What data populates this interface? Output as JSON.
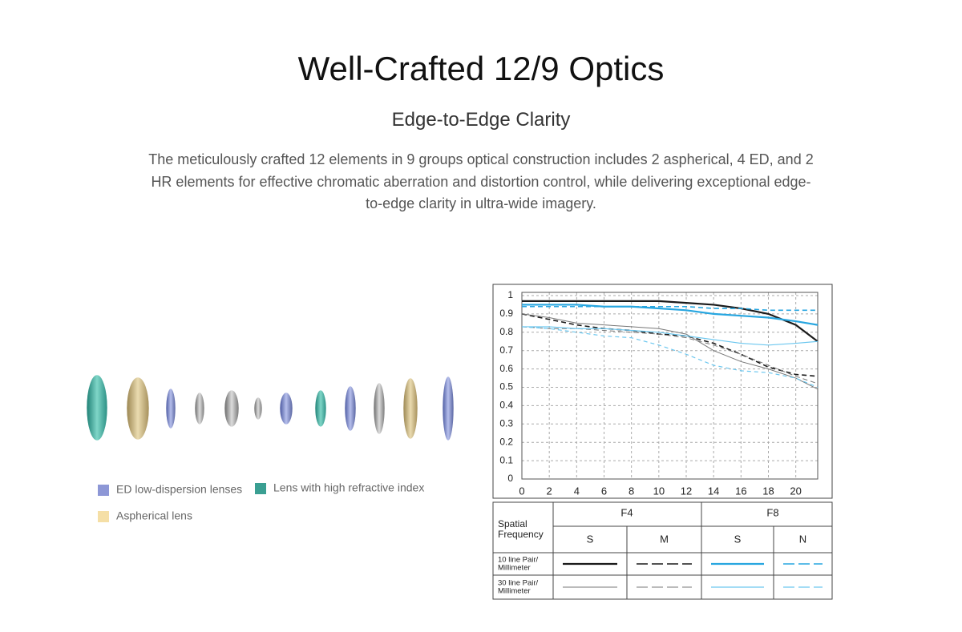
{
  "header": {
    "title": "Well-Crafted 12/9 Optics",
    "subtitle": "Edge-to-Edge Clarity",
    "body_lines": [
      "The meticulously crafted 12 elements in 9 groups optical construction includes 2 aspherical, 4 ED, and 2",
      "HR elements for effective chromatic aberration and distortion control, while delivering exceptional edge-",
      "to-edge clarity in ultra-wide imagery."
    ]
  },
  "lens_legend": [
    {
      "label": "ED low-dispersion lenses",
      "color": "#8d97d6"
    },
    {
      "label": "Lens with high refractive index",
      "color": "#3a9f92"
    },
    {
      "label": "Aspherical lens",
      "color": "#f5dfa6"
    }
  ],
  "chart_data": {
    "type": "line",
    "x": [
      0,
      2,
      4,
      6,
      8,
      10,
      12,
      14,
      16,
      18,
      20,
      21.6
    ],
    "xlim": [
      0,
      21.6
    ],
    "xticks": [
      0,
      2,
      4,
      6,
      8,
      10,
      12,
      14,
      16,
      18,
      20
    ],
    "ylim": [
      0,
      1
    ],
    "yticks": [
      0,
      0.1,
      0.2,
      0.3,
      0.4,
      0.5,
      0.6,
      0.7,
      0.8,
      0.9,
      1
    ],
    "grid": true,
    "series": [
      {
        "color": "#1a1a1a",
        "dash": "none",
        "width": 2.2,
        "values": [
          0.97,
          0.97,
          0.97,
          0.97,
          0.97,
          0.97,
          0.96,
          0.95,
          0.93,
          0.9,
          0.84,
          0.75
        ]
      },
      {
        "color": "#1a1a1a",
        "dash": "6 4",
        "width": 1.6,
        "values": [
          0.9,
          0.87,
          0.84,
          0.82,
          0.81,
          0.79,
          0.78,
          0.74,
          0.68,
          0.61,
          0.57,
          0.56
        ]
      },
      {
        "color": "#27a6e0",
        "dash": "none",
        "width": 2.2,
        "values": [
          0.95,
          0.95,
          0.95,
          0.94,
          0.94,
          0.93,
          0.92,
          0.9,
          0.89,
          0.88,
          0.86,
          0.84
        ]
      },
      {
        "color": "#27a6e0",
        "dash": "6 4",
        "width": 1.6,
        "values": [
          0.94,
          0.94,
          0.94,
          0.94,
          0.94,
          0.94,
          0.94,
          0.93,
          0.93,
          0.92,
          0.92,
          0.92
        ]
      },
      {
        "color": "#777777",
        "dash": "none",
        "width": 1,
        "values": [
          0.9,
          0.88,
          0.85,
          0.84,
          0.83,
          0.82,
          0.79,
          0.7,
          0.64,
          0.6,
          0.55,
          0.49
        ]
      },
      {
        "color": "#777777",
        "dash": "6 4",
        "width": 1,
        "values": [
          0.83,
          0.82,
          0.82,
          0.81,
          0.8,
          0.79,
          0.77,
          0.73,
          0.68,
          0.62,
          0.56,
          0.52
        ]
      },
      {
        "color": "#6cc7ef",
        "dash": "none",
        "width": 1.2,
        "values": [
          0.83,
          0.83,
          0.82,
          0.82,
          0.81,
          0.8,
          0.78,
          0.76,
          0.74,
          0.73,
          0.74,
          0.75
        ]
      },
      {
        "color": "#6cc7ef",
        "dash": "5 4",
        "width": 1.2,
        "values": [
          0.83,
          0.82,
          0.8,
          0.78,
          0.77,
          0.73,
          0.68,
          0.62,
          0.59,
          0.58,
          0.55,
          0.5
        ]
      }
    ]
  },
  "mtf_table": {
    "corner": [
      "Spatial",
      "Frequency"
    ],
    "groups": [
      "F4",
      "F8"
    ],
    "columns": [
      "S",
      "M",
      "S",
      "N"
    ],
    "rows": [
      [
        "10 line Pair/",
        "Millimeter"
      ],
      [
        "30 line Pair/",
        "Millimeter"
      ]
    ]
  }
}
